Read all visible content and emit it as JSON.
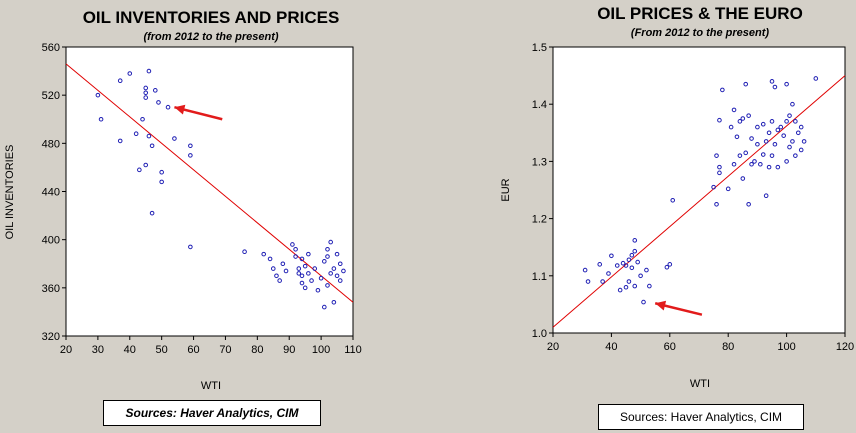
{
  "chart_data": [
    {
      "type": "scatter",
      "title": "OIL INVENTORIES AND PRICES",
      "subtitle": "(from 2012 to the present)",
      "xlabel": "WTI",
      "ylabel": "OIL INVENTORIES",
      "xlim": [
        20,
        110
      ],
      "ylim": [
        320,
        560
      ],
      "xticks": [
        20,
        30,
        40,
        50,
        60,
        70,
        80,
        90,
        100,
        110
      ],
      "yticks": [
        320,
        360,
        400,
        440,
        480,
        520,
        560
      ],
      "source": "Sources: Haver Analytics, CIM",
      "regression": [
        [
          20,
          546
        ],
        [
          110,
          348
        ]
      ],
      "arrow": {
        "from": [
          69,
          500
        ],
        "to": [
          54,
          510
        ]
      },
      "points": [
        [
          30,
          520
        ],
        [
          31,
          500
        ],
        [
          37,
          532
        ],
        [
          37,
          482
        ],
        [
          40,
          538
        ],
        [
          42,
          488
        ],
        [
          43,
          458
        ],
        [
          44,
          500
        ],
        [
          45,
          526
        ],
        [
          45,
          522
        ],
        [
          45,
          518
        ],
        [
          46,
          540
        ],
        [
          46,
          486
        ],
        [
          45,
          462
        ],
        [
          47,
          478
        ],
        [
          47,
          422
        ],
        [
          48,
          524
        ],
        [
          49,
          514
        ],
        [
          50,
          448
        ],
        [
          50,
          456
        ],
        [
          52,
          510
        ],
        [
          54,
          484
        ],
        [
          59,
          478
        ],
        [
          59,
          470
        ],
        [
          59,
          394
        ],
        [
          76,
          390
        ],
        [
          82,
          388
        ],
        [
          84,
          384
        ],
        [
          85,
          376
        ],
        [
          86,
          370
        ],
        [
          87,
          366
        ],
        [
          88,
          380
        ],
        [
          89,
          374
        ],
        [
          91,
          396
        ],
        [
          92,
          392
        ],
        [
          92,
          386
        ],
        [
          93,
          376
        ],
        [
          93,
          372
        ],
        [
          94,
          370
        ],
        [
          94,
          364
        ],
        [
          94,
          384
        ],
        [
          95,
          378
        ],
        [
          96,
          388
        ],
        [
          95,
          360
        ],
        [
          96,
          372
        ],
        [
          97,
          366
        ],
        [
          98,
          376
        ],
        [
          99,
          358
        ],
        [
          100,
          368
        ],
        [
          101,
          382
        ],
        [
          101,
          344
        ],
        [
          102,
          386
        ],
        [
          102,
          392
        ],
        [
          102,
          362
        ],
        [
          103,
          398
        ],
        [
          104,
          376
        ],
        [
          104,
          348
        ],
        [
          105,
          388
        ],
        [
          105,
          370
        ],
        [
          106,
          380
        ],
        [
          106,
          366
        ],
        [
          107,
          374
        ],
        [
          103,
          372
        ]
      ]
    },
    {
      "type": "scatter",
      "title": "OIL PRICES & THE EURO",
      "subtitle": "(From 2012 to the present)",
      "xlabel": "WTI",
      "ylabel": "EUR",
      "xlim": [
        20,
        120
      ],
      "ylim": [
        1.0,
        1.5
      ],
      "xticks": [
        20,
        40,
        60,
        80,
        100,
        120
      ],
      "yticks": [
        "1.0",
        "1.1",
        "1.2",
        "1.3",
        "1.4",
        "1.5"
      ],
      "source": "Sources:  Haver Analytics, CIM",
      "regression": [
        [
          20,
          1.01
        ],
        [
          120,
          1.45
        ]
      ],
      "arrow": {
        "from": [
          71,
          1.032
        ],
        "to": [
          55,
          1.052
        ]
      },
      "points": [
        [
          31,
          1.11
        ],
        [
          32,
          1.09
        ],
        [
          36,
          1.12
        ],
        [
          37,
          1.09
        ],
        [
          39,
          1.104
        ],
        [
          40,
          1.135
        ],
        [
          42,
          1.118
        ],
        [
          43,
          1.075
        ],
        [
          44,
          1.122
        ],
        [
          45,
          1.118
        ],
        [
          45,
          1.08
        ],
        [
          46,
          1.128
        ],
        [
          46,
          1.09
        ],
        [
          47,
          1.114
        ],
        [
          47,
          1.136
        ],
        [
          48,
          1.162
        ],
        [
          48,
          1.143
        ],
        [
          48,
          1.082
        ],
        [
          49,
          1.124
        ],
        [
          50,
          1.1
        ],
        [
          51,
          1.054
        ],
        [
          52,
          1.11
        ],
        [
          53,
          1.082
        ],
        [
          59,
          1.115
        ],
        [
          60,
          1.12
        ],
        [
          61,
          1.232
        ],
        [
          75,
          1.255
        ],
        [
          76,
          1.225
        ],
        [
          76,
          1.31
        ],
        [
          77,
          1.28
        ],
        [
          77,
          1.29
        ],
        [
          77,
          1.372
        ],
        [
          78,
          1.425
        ],
        [
          80,
          1.252
        ],
        [
          81,
          1.36
        ],
        [
          82,
          1.39
        ],
        [
          82,
          1.295
        ],
        [
          83,
          1.343
        ],
        [
          84,
          1.31
        ],
        [
          84,
          1.37
        ],
        [
          85,
          1.375
        ],
        [
          85,
          1.27
        ],
        [
          86,
          1.315
        ],
        [
          86,
          1.435
        ],
        [
          87,
          1.38
        ],
        [
          87,
          1.225
        ],
        [
          88,
          1.295
        ],
        [
          88,
          1.34
        ],
        [
          89,
          1.3
        ],
        [
          90,
          1.33
        ],
        [
          90,
          1.36
        ],
        [
          91,
          1.295
        ],
        [
          92,
          1.312
        ],
        [
          92,
          1.365
        ],
        [
          93,
          1.24
        ],
        [
          93,
          1.335
        ],
        [
          94,
          1.29
        ],
        [
          94,
          1.35
        ],
        [
          95,
          1.44
        ],
        [
          95,
          1.37
        ],
        [
          95,
          1.31
        ],
        [
          96,
          1.43
        ],
        [
          96,
          1.33
        ],
        [
          97,
          1.29
        ],
        [
          97,
          1.355
        ],
        [
          98,
          1.36
        ],
        [
          99,
          1.345
        ],
        [
          100,
          1.37
        ],
        [
          100,
          1.3
        ],
        [
          100,
          1.435
        ],
        [
          101,
          1.38
        ],
        [
          101,
          1.325
        ],
        [
          102,
          1.335
        ],
        [
          102,
          1.4
        ],
        [
          103,
          1.31
        ],
        [
          103,
          1.37
        ],
        [
          104,
          1.35
        ],
        [
          105,
          1.36
        ],
        [
          105,
          1.32
        ],
        [
          106,
          1.335
        ],
        [
          110,
          1.445
        ]
      ]
    }
  ]
}
